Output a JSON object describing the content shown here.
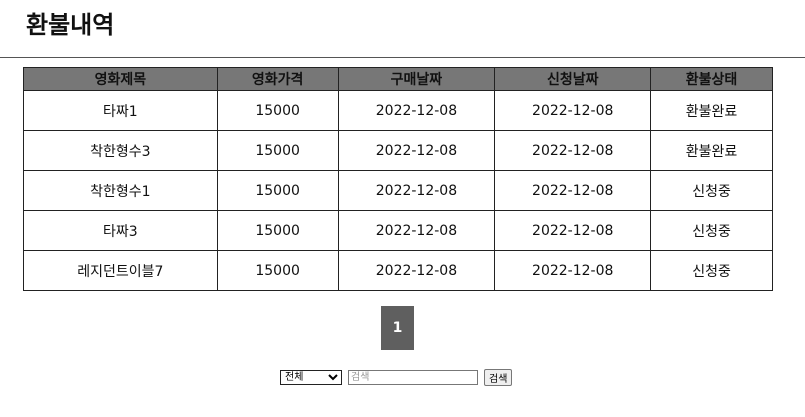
{
  "page": {
    "title": "환불내역"
  },
  "table": {
    "headers": [
      "영화제목",
      "영화가격",
      "구매날짜",
      "신청날짜",
      "환불상태"
    ],
    "rows": [
      [
        "타짜1",
        "15000",
        "2022-12-08",
        "2022-12-08",
        "환불완료"
      ],
      [
        "착한형수3",
        "15000",
        "2022-12-08",
        "2022-12-08",
        "환불완료"
      ],
      [
        "착한형수1",
        "15000",
        "2022-12-08",
        "2022-12-08",
        "신청중"
      ],
      [
        "타짜3",
        "15000",
        "2022-12-08",
        "2022-12-08",
        "신청중"
      ],
      [
        "레지던트이블7",
        "15000",
        "2022-12-08",
        "2022-12-08",
        "신청중"
      ]
    ]
  },
  "pagination": {
    "current_page": "1"
  },
  "search": {
    "selected_option": "전체",
    "placeholder": "검색",
    "button_label": "검색"
  },
  "colors": {
    "header_bg": "#777777",
    "pager_bg": "#5f5f5f"
  }
}
